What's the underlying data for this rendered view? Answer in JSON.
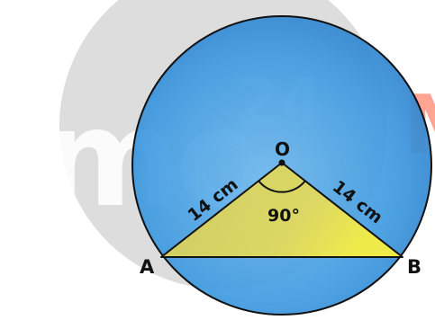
{
  "watermark": {
    "main": "mc",
    "superscript": "24",
    "trailing": "M",
    "color_gray": "#9b9b9b",
    "color_accent": "#ff5a3a"
  },
  "figure": {
    "center_label": "O",
    "left_label": "A",
    "right_label": "B",
    "radius_left_label": "14 cm",
    "radius_right_label": "14 cm",
    "angle_label": "90°",
    "colors": {
      "circle_fill": "#4aa8e8",
      "circle_stroke": "#111111",
      "triangle_fill": "#f2e25a",
      "outline": "#111111"
    }
  }
}
